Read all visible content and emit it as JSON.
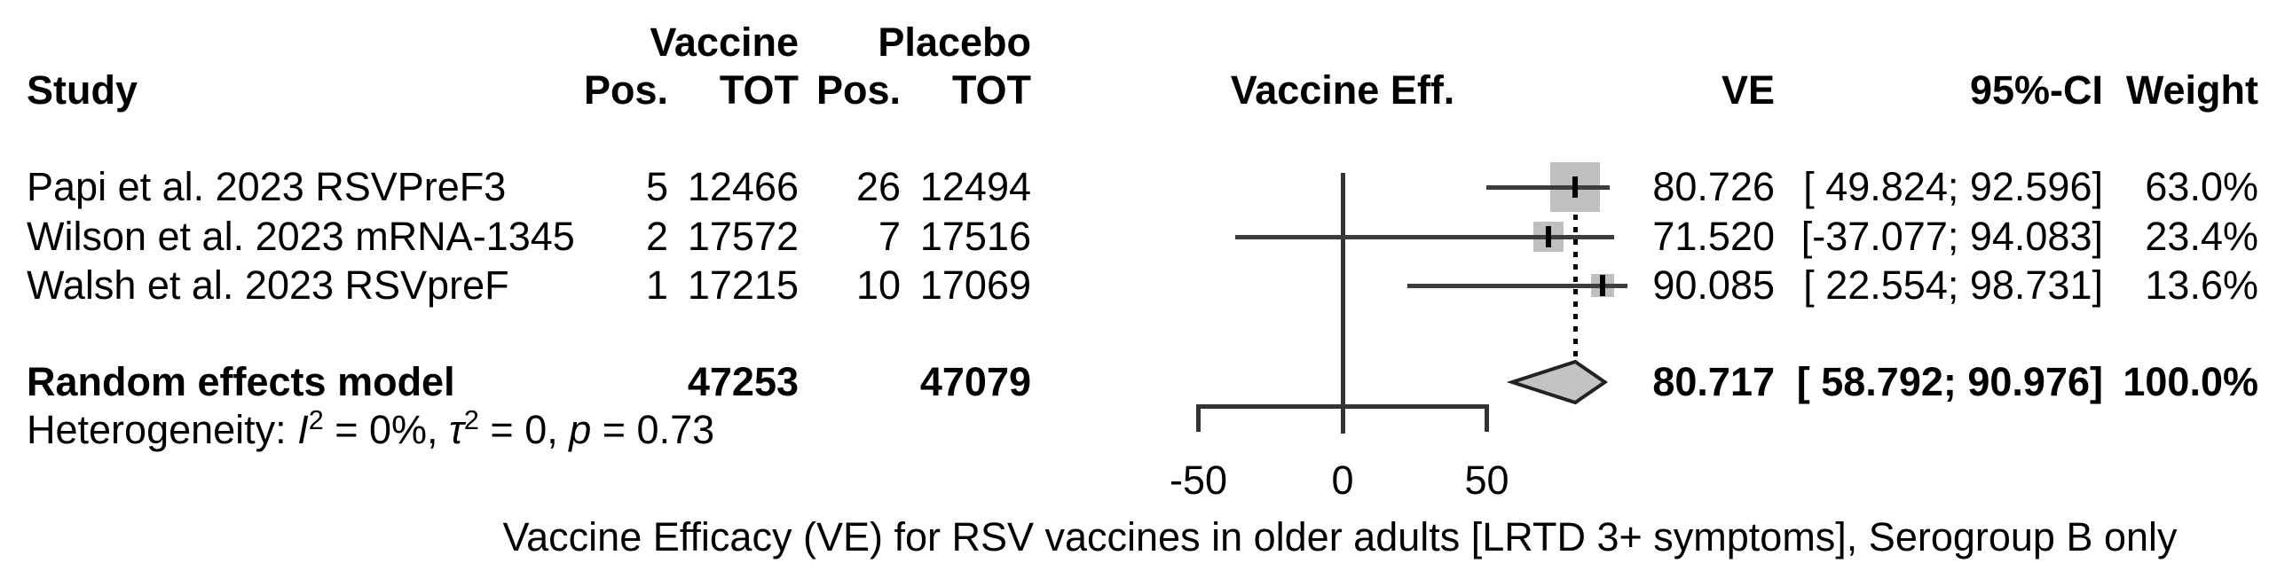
{
  "columns": {
    "study": "Study",
    "vaccine_group": "Vaccine",
    "placebo_group": "Placebo",
    "vaccine_pos": "Pos.",
    "vaccine_tot": "TOT",
    "placebo_pos": "Pos.",
    "placebo_tot": "TOT",
    "plot": "Vaccine Eff.",
    "ve": "VE",
    "ci": "95%-CI",
    "weight": "Weight"
  },
  "rows": [
    {
      "study": "Papi et al. 2023 RSVPreF3",
      "v_pos": "5",
      "v_tot": "12466",
      "p_pos": "26",
      "p_tot": "12494",
      "ve": "80.726",
      "ci": "[ 49.824; 92.596]",
      "weight": "63.0%"
    },
    {
      "study": "Wilson et al. 2023 mRNA-1345",
      "v_pos": "2",
      "v_tot": "17572",
      "p_pos": "7",
      "p_tot": "17516",
      "ve": "71.520",
      "ci": "[-37.077; 94.083]",
      "weight": "23.4%"
    },
    {
      "study": "Walsh et al. 2023 RSVpreF",
      "v_pos": "1",
      "v_tot": "17215",
      "p_pos": "10",
      "p_tot": "17069",
      "ve": "90.085",
      "ci": "[ 22.554; 98.731]",
      "weight": "13.6%"
    }
  ],
  "summary_row": {
    "label": "Random effects model",
    "v_tot": "47253",
    "p_tot": "47079",
    "ve": "80.717",
    "ci": "[ 58.792; 90.976]",
    "weight": "100.0%"
  },
  "heterogeneity": {
    "label": "Heterogeneity: ",
    "i_sym": "I",
    "i_sup": "2",
    "i_val": " = 0%, ",
    "tau_sym": "τ",
    "tau_sup": "2",
    "tau_val": " = 0, ",
    "p_sym": "p",
    "p_val": " = 0.73"
  },
  "caption": "Vaccine Efficacy (VE) for RSV vaccines in older adults [LRTD 3+ symptoms], Serogroup B only",
  "chart_data": {
    "type": "forest",
    "title": "Vaccine Efficacy (VE) for RSV vaccines in older adults [LRTD 3+ symptoms], Serogroup B only",
    "x_axis": {
      "label": "Vaccine Eff.",
      "xlim": [
        -60,
        100
      ],
      "ticks": [
        {
          "value": -50,
          "label": "-50"
        },
        {
          "value": 0,
          "label": "0"
        },
        {
          "value": 50,
          "label": "50"
        }
      ]
    },
    "studies": [
      {
        "name": "Papi et al. 2023 RSVPreF3",
        "vaccine_pos": 5,
        "vaccine_tot": 12466,
        "placebo_pos": 26,
        "placebo_tot": 12494,
        "ve": 80.726,
        "ci_low": 49.824,
        "ci_high": 92.596,
        "weight_pct": 63.0
      },
      {
        "name": "Wilson et al. 2023 mRNA-1345",
        "vaccine_pos": 2,
        "vaccine_tot": 17572,
        "placebo_pos": 7,
        "placebo_tot": 17516,
        "ve": 71.52,
        "ci_low": -37.077,
        "ci_high": 94.083,
        "weight_pct": 23.4
      },
      {
        "name": "Walsh et al. 2023 RSVpreF",
        "vaccine_pos": 1,
        "vaccine_tot": 17215,
        "placebo_pos": 10,
        "placebo_tot": 17069,
        "ve": 90.085,
        "ci_low": 22.554,
        "ci_high": 98.731,
        "weight_pct": 13.6
      }
    ],
    "summary": {
      "name": "Random effects model",
      "vaccine_tot": 47253,
      "placebo_tot": 47079,
      "ve": 80.717,
      "ci_low": 58.792,
      "ci_high": 90.976,
      "weight_pct": 100.0,
      "heterogeneity": {
        "I2": "0%",
        "tau2": 0,
        "p": 0.73
      }
    }
  }
}
